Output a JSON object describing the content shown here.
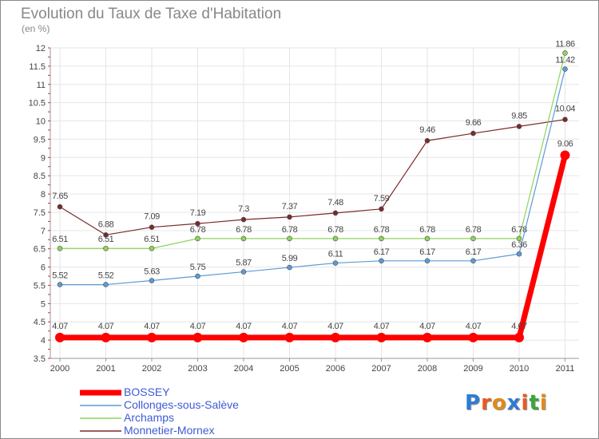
{
  "header": {
    "title": "Evolution du Taux de Taxe d'Habitation",
    "subtitle": "(en %)"
  },
  "logo": {
    "text": "Proxiti",
    "letter_colors": [
      "#2f7bd6",
      "#e85a20",
      "#e08a18",
      "#2f7bd6",
      "#e85a20",
      "#3aa63a",
      "#e08a18"
    ]
  },
  "chart_data": {
    "type": "line",
    "x": [
      "2000",
      "2001",
      "2002",
      "2003",
      "2004",
      "2005",
      "2006",
      "2007",
      "2008",
      "2009",
      "2010",
      "2011"
    ],
    "ylim": [
      3.5,
      12
    ],
    "y_ticks": [
      "3.5",
      "4",
      "4.5",
      "5",
      "5.5",
      "6",
      "6.5",
      "7",
      "7.5",
      "8",
      "8.5",
      "9",
      "9.5",
      "10",
      "10.5",
      "11",
      "11.5",
      "12"
    ],
    "grid": true,
    "legend_position": "bottom-left",
    "series": [
      {
        "name": "BOSSEY",
        "color": "#ff0000",
        "values": [
          4.07,
          4.07,
          4.07,
          4.07,
          4.07,
          4.07,
          4.07,
          4.07,
          4.07,
          4.07,
          4.07,
          9.06
        ],
        "labels": [
          "4.07",
          "4.07",
          "4.07",
          "4.07",
          "4.07",
          "4.07",
          "4.07",
          "4.07",
          "4.07",
          "4.07",
          "4.07",
          "9.06"
        ]
      },
      {
        "name": "Collonges-sous-Salève",
        "color": "#5b9bd5",
        "values": [
          5.52,
          5.52,
          5.63,
          5.75,
          5.87,
          5.99,
          6.11,
          6.17,
          6.17,
          6.17,
          6.36,
          11.42
        ],
        "labels": [
          "5.52",
          "5.52",
          "5.63",
          "5.75",
          "5.87",
          "5.99",
          "6.11",
          "6.17",
          "6.17",
          "6.17",
          "6.36",
          "11.42"
        ]
      },
      {
        "name": "Archamps",
        "color": "#8ed45a",
        "values": [
          6.51,
          6.51,
          6.51,
          6.78,
          6.78,
          6.78,
          6.78,
          6.78,
          6.78,
          6.78,
          6.78,
          11.86
        ],
        "labels": [
          "6.51",
          "6.51",
          "6.51",
          "6.78",
          "6.78",
          "6.78",
          "6.78",
          "6.78",
          "6.78",
          "6.78",
          "6.78",
          "11.86"
        ]
      },
      {
        "name": "Monnetier-Mornex",
        "color": "#7a2a2a",
        "values": [
          7.65,
          6.88,
          7.09,
          7.19,
          7.3,
          7.37,
          7.48,
          7.59,
          9.46,
          9.66,
          9.85,
          10.04
        ],
        "labels": [
          "7.65",
          "6.88",
          "7.09",
          "7.19",
          "7.3",
          "7.37",
          "7.48",
          "7.59",
          "9.46",
          "9.66",
          "9.85",
          "10.04"
        ]
      }
    ]
  }
}
